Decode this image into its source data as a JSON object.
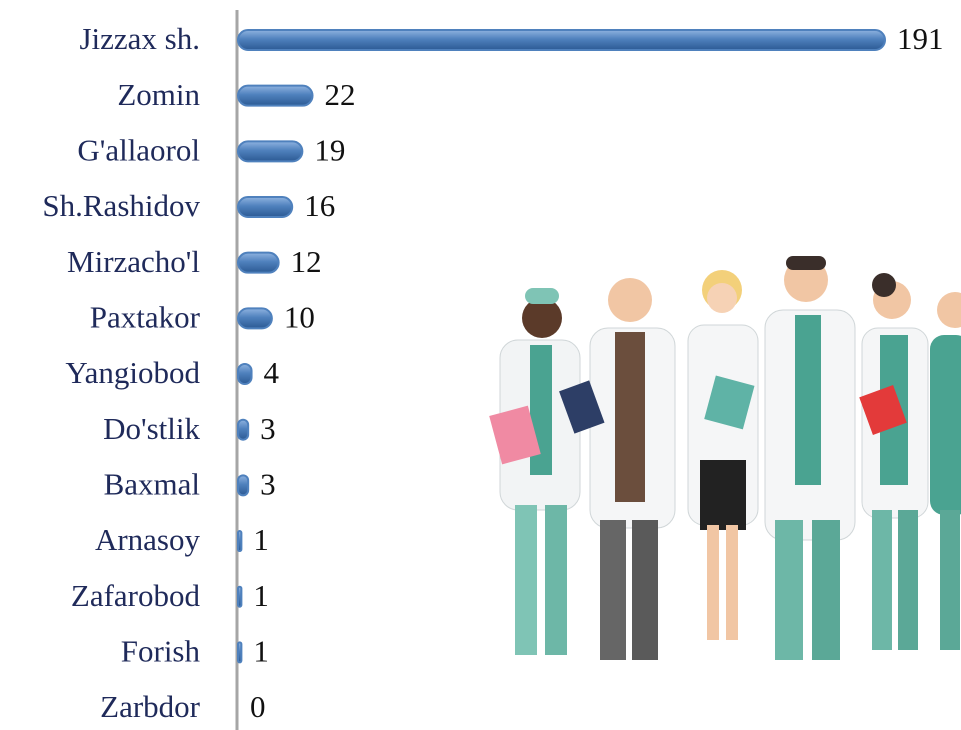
{
  "chart_data": {
    "type": "bar",
    "orientation": "horizontal",
    "categories": [
      "Jizzax sh.",
      "Zomin",
      "G'allaorol",
      "Sh.Rashidov",
      "Mirzacho'l",
      "Paxtakor",
      "Yangiobod",
      "Do'stlik",
      "Baxmal",
      "Arnasoy",
      "Zafarobod",
      "Forish",
      "Zarbdor"
    ],
    "values": [
      191,
      22,
      19,
      16,
      12,
      10,
      4,
      3,
      3,
      1,
      1,
      1,
      0
    ],
    "color": "#4f81bd"
  }
}
